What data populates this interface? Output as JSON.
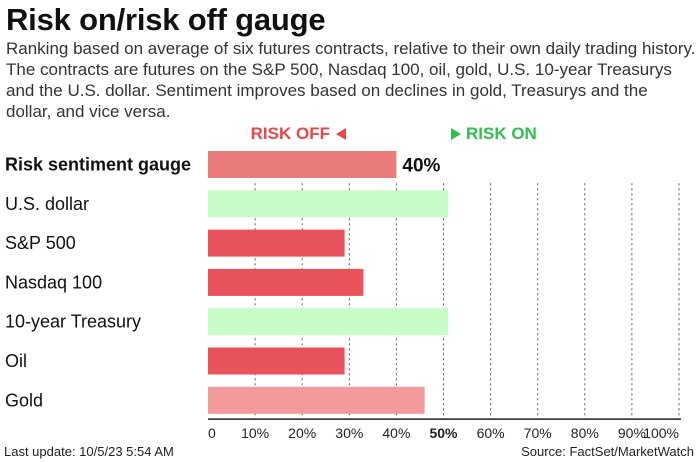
{
  "title": "Risk on/risk off gauge",
  "subtitle": "Ranking based on average of six futures contracts, relative to their own daily trading history. The contracts are futures on the S&P 500, Nasdaq 100, oil, gold, U.S. 10-year Treasurys and the U.S. dollar. Sentiment improves based on declines in gold, Treasurys and the dollar, and vice versa.",
  "legend": {
    "risk_off": "RISK OFF",
    "risk_on": "RISK ON"
  },
  "colors": {
    "gauge": "#eb7b7b",
    "risk_off_bar": "#e8525a",
    "risk_off_light": "#f29a9a",
    "risk_on_bar": "#c6fcc6",
    "risk_off_text": "#e8474c",
    "risk_on_text": "#2fbf4f"
  },
  "chart_data": {
    "type": "bar",
    "orientation": "horizontal",
    "categories": [
      "Risk sentiment gauge",
      "U.S. dollar",
      "S&P 500",
      "Nasdaq 100",
      "10-year Treasury",
      "Oil",
      "Gold"
    ],
    "values": [
      40,
      51,
      29,
      33,
      51,
      29,
      46
    ],
    "bar_colors": [
      "#eb7b7b",
      "#c6fcc6",
      "#e8525a",
      "#e8525a",
      "#c6fcc6",
      "#e8525a",
      "#f29a9a"
    ],
    "data_labels": [
      "40%",
      "",
      "",
      "",
      "",
      "",
      ""
    ],
    "xlim": [
      0,
      100
    ],
    "x_ticks": [
      "0",
      "10%",
      "20%",
      "30%",
      "40%",
      "50%",
      "60%",
      "70%",
      "80%",
      "90%",
      "100%"
    ],
    "bold_tick": "50%",
    "grid": "dotted vertical"
  },
  "footer": {
    "last_update": "Last update: 10/5/23 5:54 AM",
    "source": "Source: FactSet/MarketWatch"
  }
}
